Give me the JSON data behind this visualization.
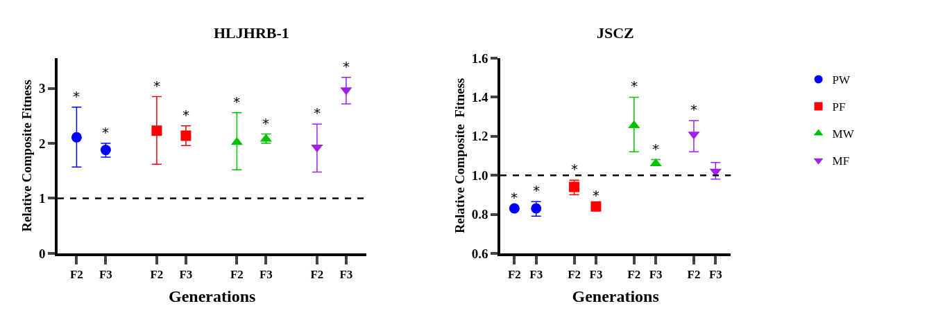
{
  "chart_data": [
    {
      "type": "scatter",
      "title": "HLJHRB-1",
      "xlabel": "Generations",
      "ylabel": "Relative Composite Fitness",
      "categories": [
        "F2",
        "F3",
        "F2",
        "F3",
        "F2",
        "F3",
        "F2",
        "F3"
      ],
      "ylim": [
        0,
        3.55
      ],
      "yticks": [
        0,
        1,
        2,
        3
      ],
      "legend": "right",
      "ref_lines": [
        {
          "axis": "y",
          "value": 1,
          "color": "#000000",
          "line_style": "dashed"
        }
      ],
      "series": [
        {
          "name": "PW",
          "color": "#0000ff",
          "marker": "circle",
          "values": [
            2.11,
            1.88,
            null,
            null,
            null,
            null,
            null,
            null
          ],
          "errors": [
            [
              1.57,
              2.66
            ],
            [
              1.75,
              2.0
            ],
            null,
            null,
            null,
            null,
            null,
            null
          ],
          "value_labels": [
            "*",
            "*",
            null,
            null,
            null,
            null,
            null,
            null
          ]
        },
        {
          "name": "PF",
          "color": "#ff0000",
          "marker": "square",
          "values": [
            null,
            null,
            2.23,
            2.14,
            null,
            null,
            null,
            null
          ],
          "errors": [
            null,
            null,
            [
              1.62,
              2.85
            ],
            [
              1.96,
              2.32
            ],
            null,
            null,
            null,
            null
          ],
          "value_labels": [
            null,
            null,
            "*",
            "*",
            null,
            null,
            null,
            null
          ]
        },
        {
          "name": "MW",
          "color": "#00c000",
          "marker": "triangle",
          "values": [
            null,
            null,
            null,
            null,
            2.02,
            2.08,
            null,
            null
          ],
          "errors": [
            null,
            null,
            null,
            null,
            [
              1.52,
              2.56
            ],
            [
              2.0,
              2.17
            ],
            null,
            null
          ],
          "value_labels": [
            null,
            null,
            null,
            null,
            "*",
            "*",
            null,
            null
          ]
        },
        {
          "name": "MF",
          "color": "#a020f0",
          "marker": "triangle-down",
          "values": [
            null,
            null,
            null,
            null,
            null,
            null,
            1.93,
            2.97
          ],
          "errors": [
            null,
            null,
            null,
            null,
            null,
            null,
            [
              1.48,
              2.35
            ],
            [
              2.72,
              3.2
            ]
          ],
          "value_labels": [
            null,
            null,
            null,
            null,
            null,
            null,
            "*",
            "*"
          ]
        }
      ]
    },
    {
      "type": "scatter",
      "title": "JSCZ",
      "xlabel": "Generations",
      "ylabel": "Relative Composite  Fitness",
      "categories": [
        "F2",
        "F3",
        "F2",
        "F3",
        "F2",
        "F3",
        "F2",
        "F3"
      ],
      "ylim": [
        0.6,
        1.6
      ],
      "yticks": [
        {
          "value": 0.6,
          "label": "0.6"
        },
        {
          "value": 0.8,
          "label": "0.8"
        },
        {
          "value": 1.0,
          "label": "1.0"
        },
        {
          "value": 1.2,
          "label": "1.2"
        },
        {
          "value": 1.4,
          "label": "1.4"
        },
        {
          "value": 1.6,
          "label": "1.6"
        }
      ],
      "ref_lines": [
        {
          "axis": "y",
          "value": 1.0,
          "color": "#000000",
          "line_style": "dashed"
        }
      ],
      "series": [
        {
          "color": "#0000ff",
          "marker": "circle",
          "values": [
            0.83,
            0.83,
            null,
            null,
            null,
            null,
            null,
            null
          ],
          "errors": [
            null,
            [
              0.79,
              0.865
            ],
            null,
            null,
            null,
            null,
            null,
            null
          ],
          "value_labels": [
            "*",
            "*",
            null,
            null,
            null,
            null,
            null,
            null
          ]
        },
        {
          "color": "#ff0000",
          "marker": "square",
          "values": [
            null,
            null,
            0.94,
            0.84,
            null,
            null,
            null,
            null
          ],
          "errors": [
            null,
            null,
            [
              0.9,
              0.975
            ],
            null,
            null,
            null,
            null,
            null
          ],
          "value_labels": [
            null,
            null,
            "*",
            "*",
            null,
            null,
            null,
            null
          ]
        },
        {
          "color": "#00c000",
          "marker": "triangle",
          "values": [
            null,
            null,
            null,
            null,
            1.255,
            1.06,
            null,
            null
          ],
          "errors": [
            null,
            null,
            null,
            null,
            [
              1.12,
              1.4
            ],
            [
              1.05,
              1.08
            ],
            null,
            null
          ],
          "value_labels": [
            null,
            null,
            null,
            null,
            "*",
            "*",
            null,
            null
          ]
        },
        {
          "color": "#a020f0",
          "marker": "triangle-down",
          "values": [
            null,
            null,
            null,
            null,
            null,
            null,
            1.21,
            1.02
          ],
          "errors": [
            null,
            null,
            null,
            null,
            null,
            null,
            [
              1.12,
              1.28
            ],
            [
              0.98,
              1.065
            ]
          ],
          "value_labels": [
            null,
            null,
            null,
            null,
            null,
            null,
            "*",
            null
          ]
        }
      ]
    }
  ]
}
